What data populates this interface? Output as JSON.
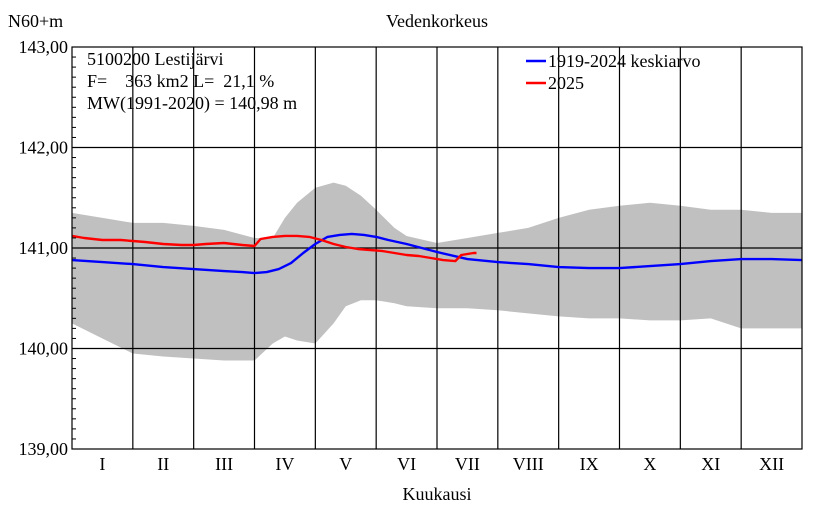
{
  "chart_data": {
    "type": "line",
    "title": "Vedenkorkeus",
    "ylabel": "N60+m",
    "xlabel": "Kuukausi",
    "ylim": [
      139.0,
      143.0
    ],
    "xlim": [
      0,
      12
    ],
    "y_ticks": [
      "139,00",
      "140,00",
      "141,00",
      "142,00",
      "143,00"
    ],
    "y_tick_values": [
      139.0,
      140.0,
      141.0,
      142.0,
      143.0
    ],
    "months": [
      "I",
      "II",
      "III",
      "IV",
      "V",
      "VI",
      "VII",
      "VIII",
      "IX",
      "X",
      "XI",
      "XII"
    ],
    "grid": true,
    "info": {
      "station": "5100200 Lestijärvi",
      "area": "F=    363 km2 L=  21,1 %",
      "mw": "MW(1991-2020) = 140,98 m"
    },
    "legend_position": "top-right",
    "band_color": "#c0c0c0",
    "band": {
      "x": [
        0,
        0.5,
        1.0,
        1.5,
        2.0,
        2.5,
        3.0,
        3.3,
        3.5,
        3.7,
        4.0,
        4.3,
        4.5,
        4.75,
        5.0,
        5.3,
        5.5,
        6.0,
        6.5,
        7.0,
        7.5,
        8.0,
        8.5,
        9.0,
        9.5,
        10.0,
        10.5,
        11.0,
        11.5,
        12.0
      ],
      "upper": [
        141.35,
        141.3,
        141.25,
        141.25,
        141.22,
        141.18,
        141.1,
        141.1,
        141.3,
        141.45,
        141.6,
        141.65,
        141.62,
        141.52,
        141.38,
        141.2,
        141.12,
        141.05,
        141.1,
        141.15,
        141.2,
        141.3,
        141.38,
        141.42,
        141.45,
        141.42,
        141.38,
        141.38,
        141.35,
        141.35
      ],
      "lower": [
        140.25,
        140.1,
        139.95,
        139.92,
        139.9,
        139.88,
        139.88,
        140.05,
        140.12,
        140.08,
        140.05,
        140.25,
        140.42,
        140.48,
        140.48,
        140.45,
        140.42,
        140.4,
        140.4,
        140.38,
        140.35,
        140.32,
        140.3,
        140.3,
        140.28,
        140.28,
        140.3,
        140.2,
        140.2,
        140.2
      ]
    },
    "series": [
      {
        "name": "1919-2024 keskiarvo",
        "color": "#0000ff",
        "x": [
          0,
          0.5,
          1.0,
          1.5,
          2.0,
          2.5,
          2.8,
          3.0,
          3.2,
          3.4,
          3.6,
          3.8,
          4.0,
          4.2,
          4.4,
          4.6,
          4.8,
          5.0,
          5.2,
          5.5,
          6.0,
          6.5,
          7.0,
          7.5,
          8.0,
          8.5,
          9.0,
          9.5,
          10.0,
          10.5,
          11.0,
          11.5,
          12.0
        ],
        "y": [
          140.88,
          140.86,
          140.84,
          140.81,
          140.79,
          140.77,
          140.76,
          140.75,
          140.76,
          140.79,
          140.85,
          140.95,
          141.04,
          141.11,
          141.13,
          141.14,
          141.13,
          141.11,
          141.08,
          141.04,
          140.96,
          140.89,
          140.86,
          140.84,
          140.81,
          140.8,
          140.8,
          140.82,
          140.84,
          140.87,
          140.89,
          140.89,
          140.88
        ]
      },
      {
        "name": "2025",
        "color": "#ff0000",
        "x": [
          0,
          0.2,
          0.5,
          0.8,
          1.0,
          1.2,
          1.5,
          1.8,
          2.0,
          2.2,
          2.5,
          2.8,
          3.0,
          3.1,
          3.3,
          3.5,
          3.7,
          3.9,
          4.1,
          4.3,
          4.5,
          4.7,
          4.9,
          5.1,
          5.3,
          5.5,
          5.7,
          5.9,
          6.1,
          6.3,
          6.4,
          6.5,
          6.6,
          6.65
        ],
        "y": [
          141.12,
          141.1,
          141.08,
          141.08,
          141.07,
          141.06,
          141.04,
          141.03,
          141.03,
          141.04,
          141.05,
          141.03,
          141.02,
          141.09,
          141.11,
          141.12,
          141.12,
          141.11,
          141.08,
          141.04,
          141.01,
          140.99,
          140.98,
          140.97,
          140.95,
          140.93,
          140.92,
          140.9,
          140.88,
          140.87,
          140.93,
          140.94,
          140.95,
          140.95
        ]
      }
    ]
  }
}
